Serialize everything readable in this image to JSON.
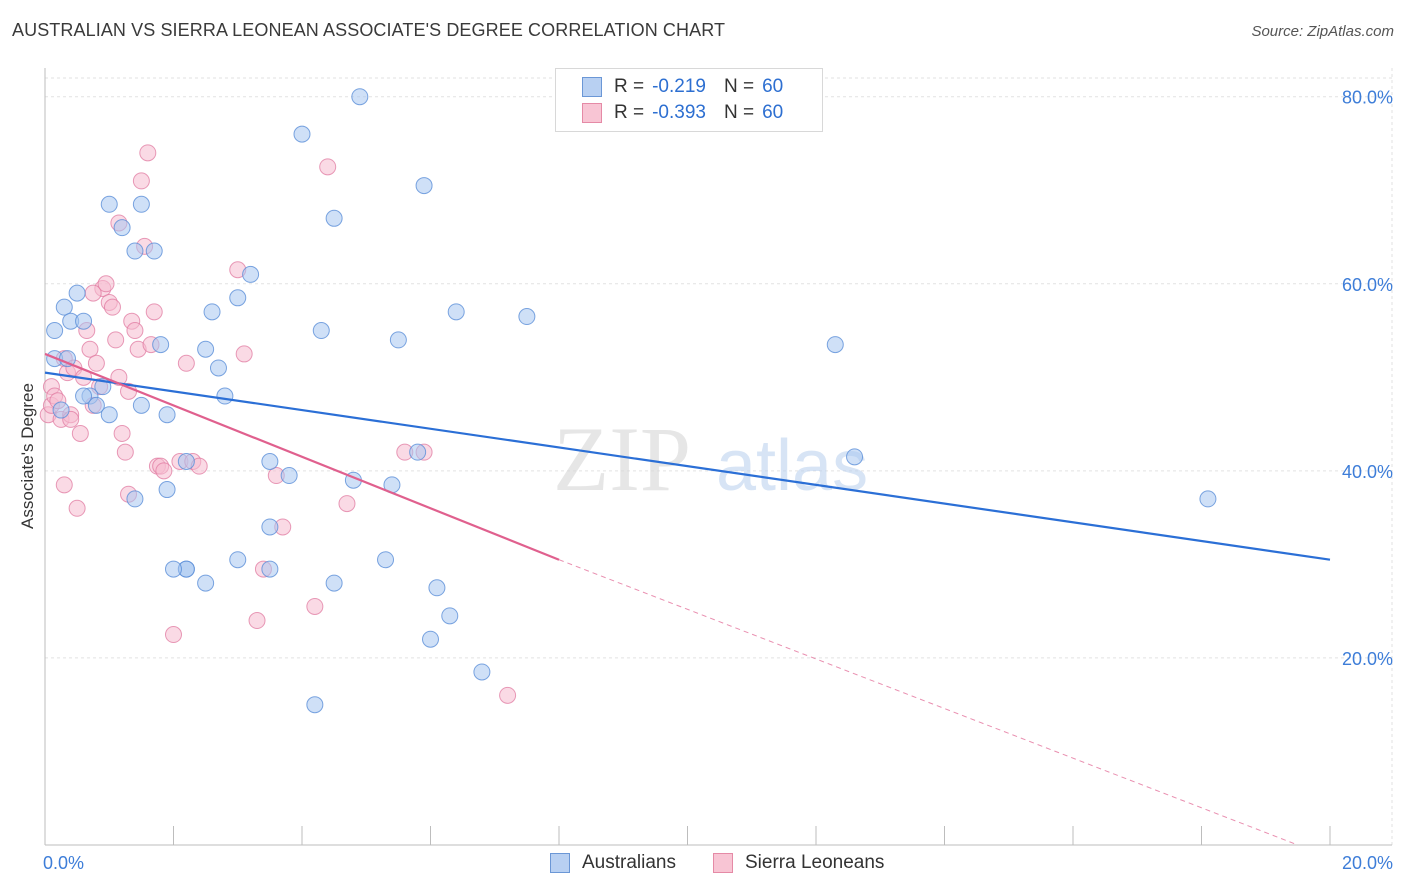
{
  "title": "AUSTRALIAN VS SIERRA LEONEAN ASSOCIATE'S DEGREE CORRELATION CHART",
  "source": "Source: ZipAtlas.com",
  "watermark": {
    "zip": "ZIP",
    "atlas": "atlas"
  },
  "legend": {
    "rows": [
      {
        "r_label": "R =",
        "r_value": "-0.219",
        "n_label": "N =",
        "n_value": "60"
      },
      {
        "r_label": "R =",
        "r_value": "-0.393",
        "n_label": "N =",
        "n_value": "60"
      }
    ]
  },
  "bottom_legend": {
    "australians": "Australians",
    "sierra_leoneans": "Sierra Leoneans"
  },
  "colors": {
    "blue_fill": "#a8c6f0",
    "blue_stroke": "#5b8fd8",
    "blue_line": "#2b6fd6",
    "pink_fill": "#f6bcd0",
    "pink_stroke": "#e07aa0",
    "pink_line": "#e0608e",
    "tick_label": "#3d7dd8",
    "grid": "#e2e2e2"
  },
  "chart_data": {
    "type": "scatter",
    "title": "AUSTRALIAN VS SIERRA LEONEAN ASSOCIATE'S DEGREE CORRELATION CHART",
    "xlabel": "",
    "ylabel": "Associate's Degree",
    "xlim": [
      0,
      20
    ],
    "ylim": [
      0,
      82
    ],
    "x_tick_labels": [
      "0.0%",
      "20.0%"
    ],
    "y_ticks": [
      20,
      40,
      60,
      80
    ],
    "y_tick_labels": [
      "20.0%",
      "40.0%",
      "60.0%",
      "80.0%"
    ],
    "series": [
      {
        "name": "Australians",
        "r": -0.219,
        "n": 60,
        "trend": {
          "x": [
            0,
            20
          ],
          "y": [
            50.5,
            30.5
          ]
        },
        "points": [
          [
            0.15,
            55
          ],
          [
            0.3,
            57.5
          ],
          [
            0.4,
            56
          ],
          [
            0.5,
            59
          ],
          [
            0.6,
            56
          ],
          [
            0.7,
            48
          ],
          [
            0.8,
            47
          ],
          [
            0.9,
            49
          ],
          [
            0.15,
            52
          ],
          [
            0.25,
            46.5
          ],
          [
            1.0,
            46
          ],
          [
            1.0,
            68.5
          ],
          [
            1.2,
            66
          ],
          [
            1.4,
            63.5
          ],
          [
            1.5,
            68.5
          ],
          [
            1.7,
            63.5
          ],
          [
            1.8,
            53.5
          ],
          [
            1.9,
            38
          ],
          [
            1.5,
            47
          ],
          [
            1.9,
            46
          ],
          [
            2.2,
            41
          ],
          [
            2.5,
            53
          ],
          [
            2.6,
            57
          ],
          [
            2.7,
            51
          ],
          [
            2.8,
            48
          ],
          [
            3.0,
            58.5
          ],
          [
            3.2,
            61
          ],
          [
            3.5,
            41
          ],
          [
            3.5,
            34
          ],
          [
            3.8,
            39.5
          ],
          [
            4.0,
            76
          ],
          [
            4.2,
            15
          ],
          [
            4.3,
            55
          ],
          [
            4.5,
            67
          ],
          [
            4.5,
            28
          ],
          [
            4.8,
            39
          ],
          [
            4.9,
            80
          ],
          [
            5.3,
            30.5
          ],
          [
            5.4,
            38.5
          ],
          [
            5.5,
            54
          ],
          [
            5.8,
            42
          ],
          [
            5.9,
            70.5
          ],
          [
            6.0,
            22
          ],
          [
            6.1,
            27.5
          ],
          [
            6.3,
            24.5
          ],
          [
            6.4,
            57
          ],
          [
            6.8,
            18.5
          ],
          [
            7.5,
            56.5
          ],
          [
            12.3,
            53.5
          ],
          [
            12.6,
            41.5
          ],
          [
            18.1,
            37
          ],
          [
            1.4,
            37
          ],
          [
            2.2,
            29.5
          ],
          [
            2.5,
            28
          ],
          [
            3.0,
            30.5
          ],
          [
            3.5,
            29.5
          ],
          [
            2.2,
            29.5
          ],
          [
            0.6,
            48
          ],
          [
            0.35,
            52
          ],
          [
            2.0,
            29.5
          ]
        ]
      },
      {
        "name": "Sierra Leoneans",
        "r": -0.393,
        "n": 60,
        "trend": {
          "x": [
            0,
            8
          ],
          "y": [
            52.5,
            30.5
          ]
        },
        "trend_dashed": {
          "x": [
            8,
            19.5
          ],
          "y": [
            30.5,
            0
          ]
        },
        "points": [
          [
            0.05,
            46
          ],
          [
            0.1,
            47
          ],
          [
            0.1,
            49
          ],
          [
            0.15,
            48
          ],
          [
            0.2,
            47.5
          ],
          [
            0.25,
            45.5
          ],
          [
            0.3,
            52
          ],
          [
            0.35,
            50.5
          ],
          [
            0.4,
            46
          ],
          [
            0.45,
            51
          ],
          [
            0.5,
            36
          ],
          [
            0.55,
            44
          ],
          [
            0.6,
            50
          ],
          [
            0.65,
            55
          ],
          [
            0.7,
            53
          ],
          [
            0.75,
            47
          ],
          [
            0.8,
            51.5
          ],
          [
            0.85,
            49
          ],
          [
            0.9,
            59.5
          ],
          [
            0.95,
            60
          ],
          [
            1.0,
            58
          ],
          [
            1.05,
            57.5
          ],
          [
            1.1,
            54
          ],
          [
            1.15,
            50
          ],
          [
            1.2,
            44
          ],
          [
            1.25,
            42
          ],
          [
            1.3,
            37.5
          ],
          [
            1.35,
            56
          ],
          [
            1.4,
            55
          ],
          [
            1.45,
            53
          ],
          [
            1.5,
            71
          ],
          [
            1.55,
            64
          ],
          [
            1.6,
            74
          ],
          [
            1.65,
            53.5
          ],
          [
            1.7,
            57
          ],
          [
            1.75,
            40.5
          ],
          [
            1.8,
            40.5
          ],
          [
            1.85,
            40
          ],
          [
            2.0,
            22.5
          ],
          [
            2.1,
            41
          ],
          [
            2.2,
            51.5
          ],
          [
            2.3,
            41
          ],
          [
            2.4,
            40.5
          ],
          [
            3.0,
            61.5
          ],
          [
            3.1,
            52.5
          ],
          [
            3.3,
            24
          ],
          [
            3.4,
            29.5
          ],
          [
            3.6,
            39.5
          ],
          [
            3.7,
            34
          ],
          [
            4.2,
            25.5
          ],
          [
            4.4,
            72.5
          ],
          [
            4.7,
            36.5
          ],
          [
            5.6,
            42
          ],
          [
            5.9,
            42
          ],
          [
            7.2,
            16
          ],
          [
            0.3,
            38.5
          ],
          [
            1.15,
            66.5
          ],
          [
            1.3,
            48.5
          ],
          [
            0.75,
            59
          ],
          [
            0.4,
            45.5
          ]
        ]
      }
    ]
  }
}
